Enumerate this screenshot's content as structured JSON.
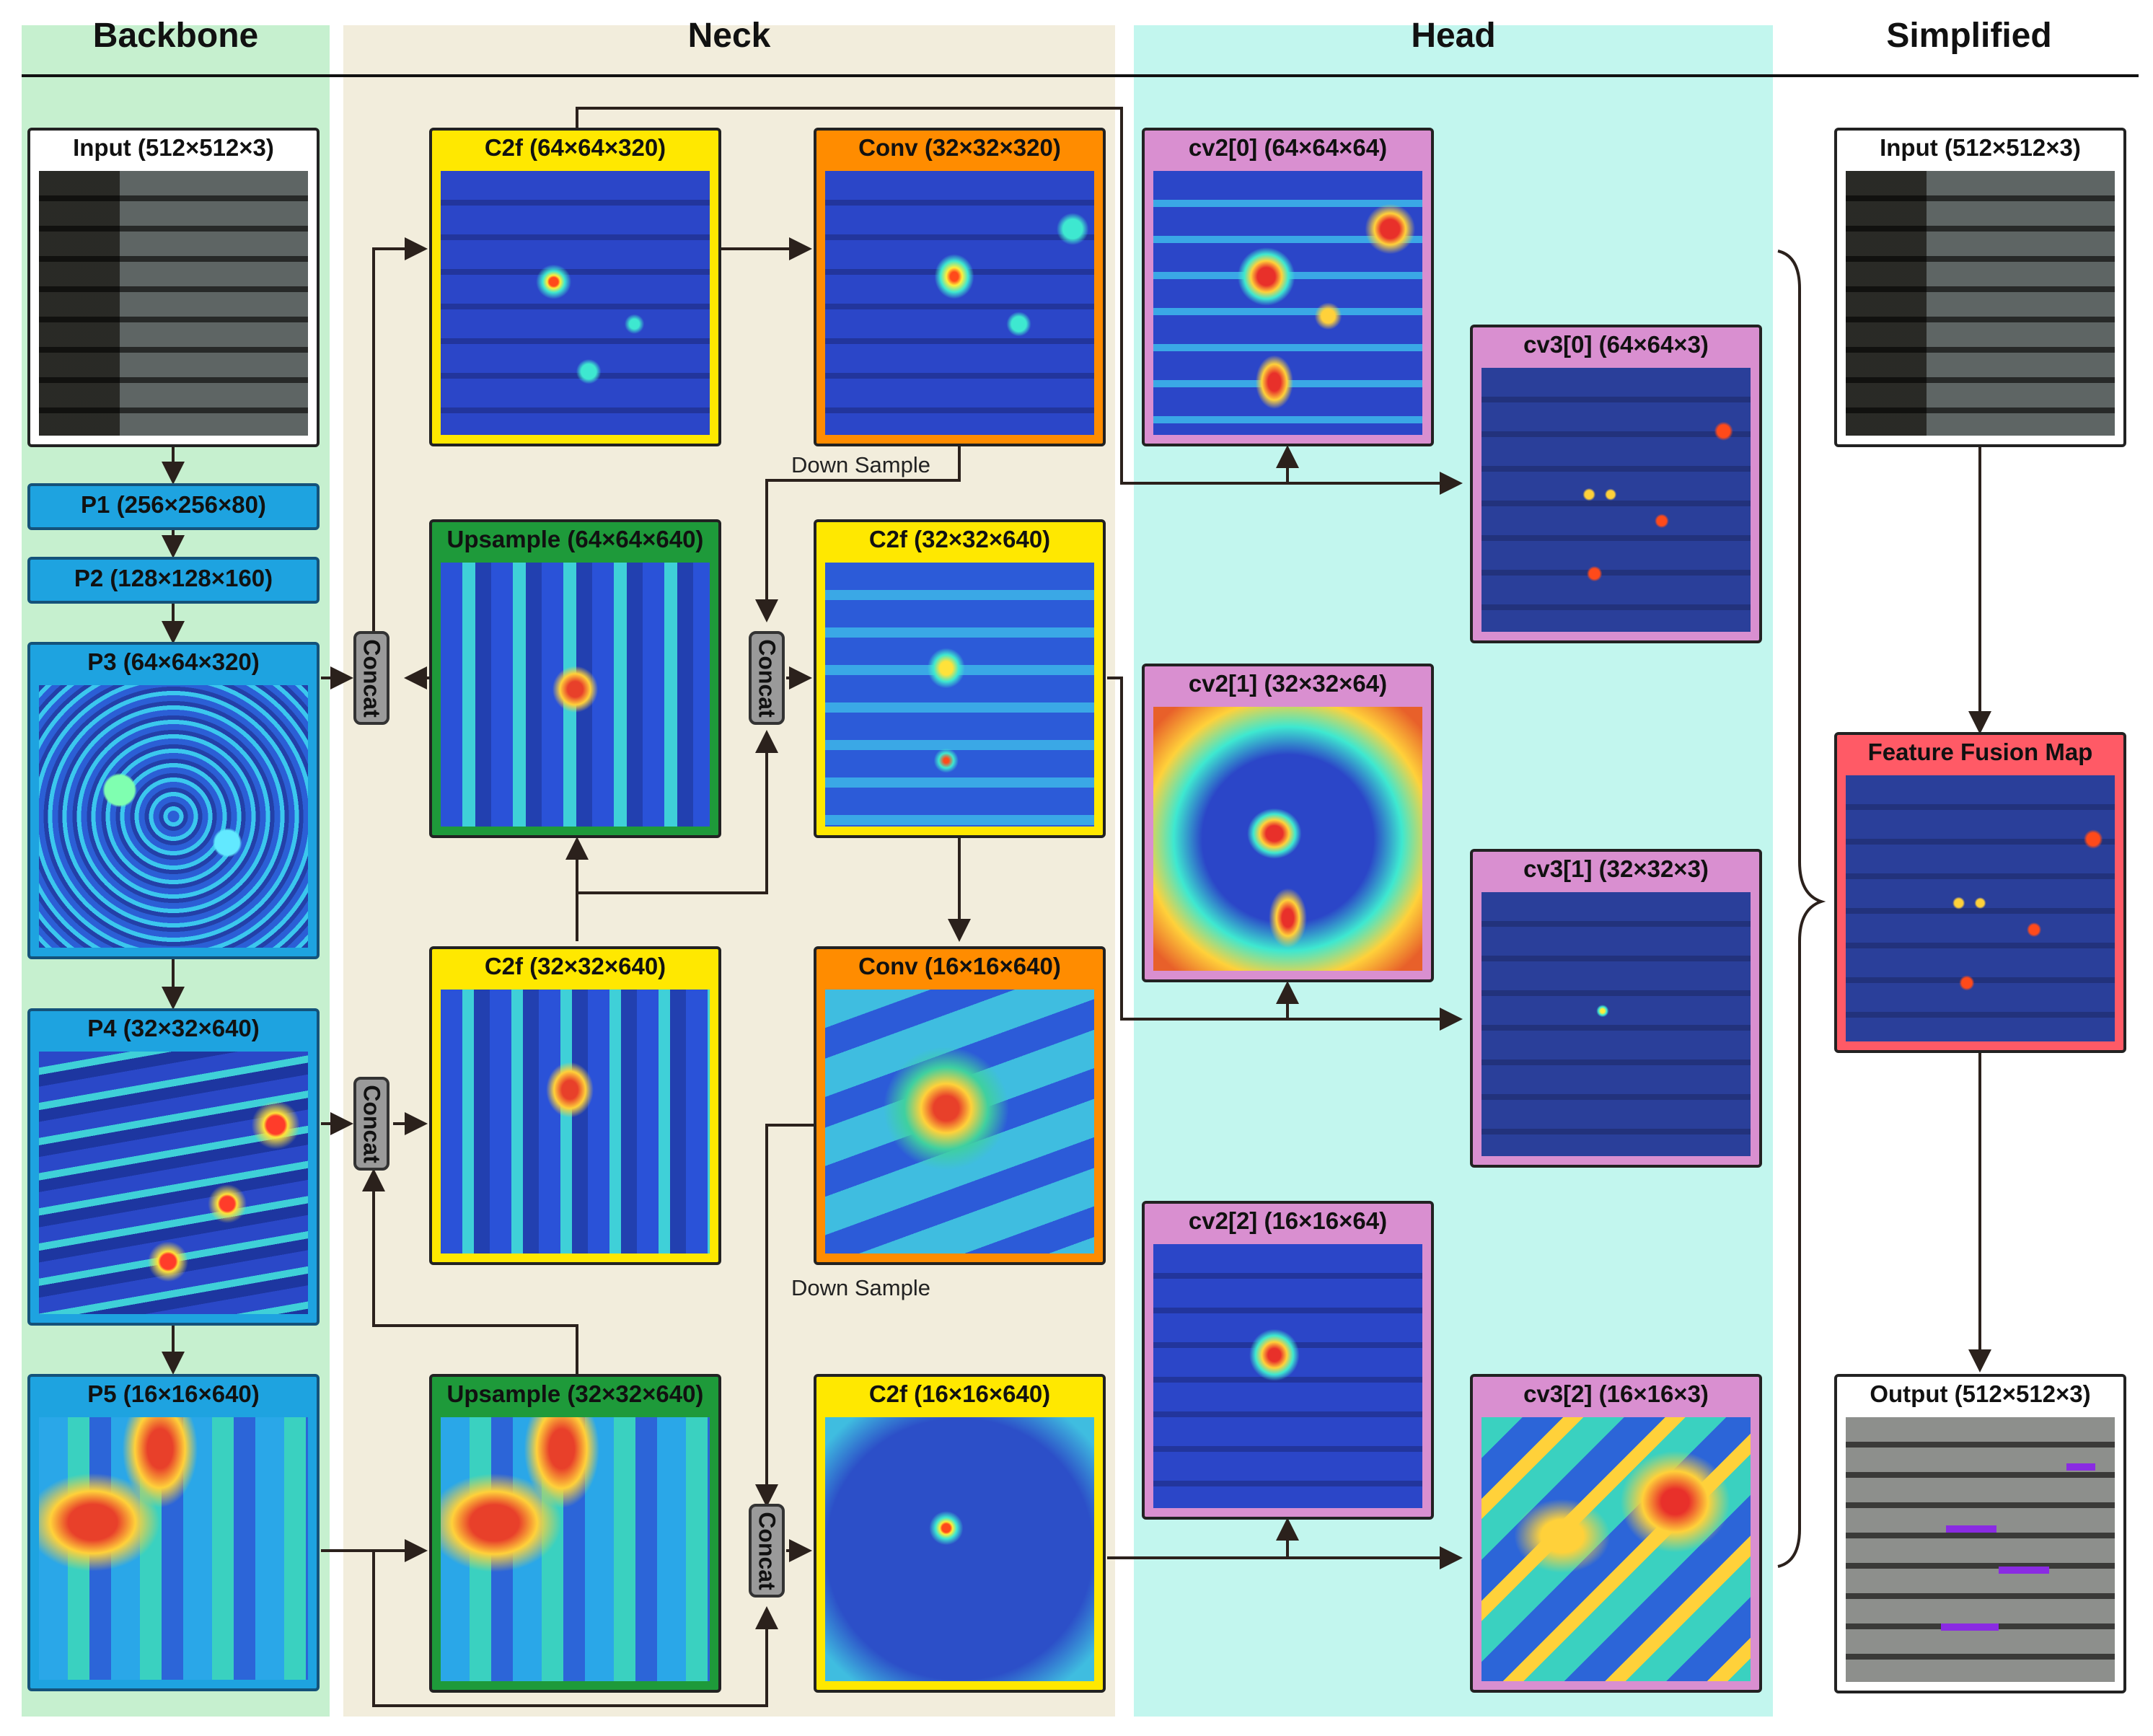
{
  "sections": {
    "backbone": "Backbone",
    "neck": "Neck",
    "head": "Head",
    "simplified": "Simplified"
  },
  "backbone": {
    "input": "Input (512×512×3)",
    "p1": "P1 (256×256×80)",
    "p2": "P2 (128×128×160)",
    "p3": "P3 (64×64×320)",
    "p4": "P4 (32×32×640)",
    "p5": "P5 (16×16×640)"
  },
  "neck": {
    "c2f_a": "C2f   (64×64×320)",
    "conv_a": "Conv (32×32×320)",
    "upsample_a": "Upsample (64×64×640)",
    "c2f_b": "C2f (32×32×640)",
    "c2f_c": "C2f   (32×32×640)",
    "conv_b": "Conv (16×16×640)",
    "upsample_b": "Upsample (32×32×640)",
    "c2f_d": "C2f (16×16×640)",
    "concat_label": "Concat",
    "down_sample": "Down Sample"
  },
  "head": {
    "cv2_0": "cv2[0] (64×64×64)",
    "cv3_0": "cv3[0] (64×64×3)",
    "cv2_1": "cv2[1] (32×32×64)",
    "cv3_1": "cv3[1] (32×32×3)",
    "cv2_2": "cv2[2] (16×16×64)",
    "cv3_2": "cv3[2] (16×16×3)"
  },
  "simplified": {
    "input": "Input (512×512×3)",
    "fusion": "Feature Fusion Map",
    "output": "Output (512×512×3)"
  },
  "colors": {
    "backbone_bg": "#c6f0cf",
    "neck_bg": "#f2eddc",
    "head_bg": "#c2f6ee",
    "yellow": "#ffe800",
    "orange": "#ff8c00",
    "green": "#1e9a3a",
    "pink": "#d98fd0",
    "blue": "#1ea3e0",
    "red": "#ff5a66"
  }
}
